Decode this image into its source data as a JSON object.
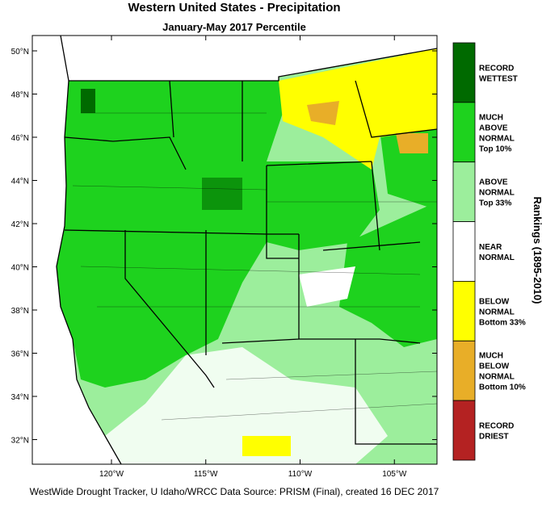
{
  "title": "Western United States - Precipitation",
  "subtitle": "January-May 2017 Percentile",
  "lat_ticks": [
    {
      "value": 50,
      "label": "50°N"
    },
    {
      "value": 48,
      "label": "48°N"
    },
    {
      "value": 46,
      "label": "46°N"
    },
    {
      "value": 44,
      "label": "44°N"
    },
    {
      "value": 42,
      "label": "42°N"
    },
    {
      "value": 40,
      "label": "40°N"
    },
    {
      "value": 38,
      "label": "38°N"
    },
    {
      "value": 36,
      "label": "36°N"
    },
    {
      "value": 34,
      "label": "34°N"
    },
    {
      "value": 32,
      "label": "32°N"
    }
  ],
  "lon_ticks": [
    {
      "value": -120,
      "label": "120°W"
    },
    {
      "value": -115,
      "label": "115°W"
    },
    {
      "value": -110,
      "label": "110°W"
    },
    {
      "value": -105,
      "label": "105°W"
    }
  ],
  "legend": {
    "title": "Rankings (1895-2010)",
    "items": [
      {
        "lines": [
          "RECORD",
          "WETTEST"
        ],
        "color": "#006a00"
      },
      {
        "lines": [
          "MUCH",
          "ABOVE",
          "NORMAL",
          "Top 10%"
        ],
        "color": "#1ed21e"
      },
      {
        "lines": [
          "ABOVE",
          "NORMAL",
          "Top 33%"
        ],
        "color": "#9cee9c"
      },
      {
        "lines": [
          "NEAR",
          "NORMAL"
        ],
        "color": "#ffffff"
      },
      {
        "lines": [
          "BELOW",
          "NORMAL",
          "Bottom 33%"
        ],
        "color": "#ffff00"
      },
      {
        "lines": [
          "MUCH",
          "BELOW",
          "NORMAL",
          "Bottom 10%"
        ],
        "color": "#e8ae28"
      },
      {
        "lines": [
          "RECORD",
          "DRIEST"
        ],
        "color": "#b42222"
      }
    ]
  },
  "footer": "WestWide Drought Tracker, U Idaho/WRCC Data Source: PRISM (Final), created 16 DEC 2017"
}
